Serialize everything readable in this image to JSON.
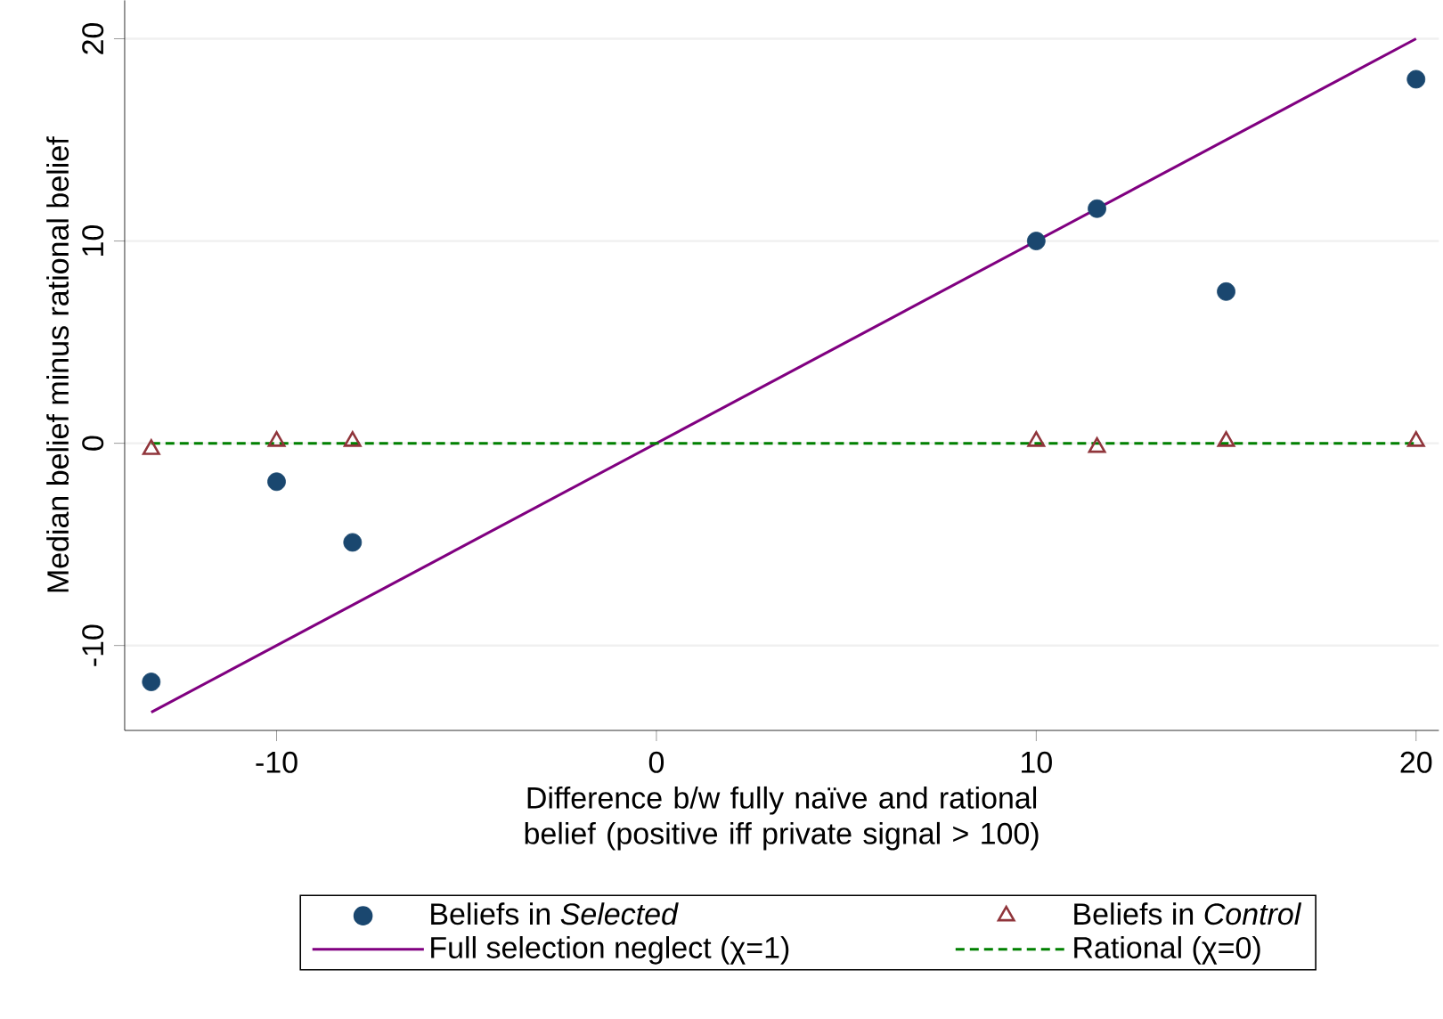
{
  "chart_data": {
    "type": "scatter",
    "xlabel": "Difference b/w fully naïve and rational belief (positive iff private signal > 100)",
    "ylabel": "Median belief minus rational belief",
    "xlim": [
      -14,
      20.6
    ],
    "ylim": [
      -14.2,
      21.9
    ],
    "xticks": [
      -10,
      0,
      10,
      20
    ],
    "yticks": [
      -10,
      0,
      10,
      20
    ],
    "grid": "y",
    "legend": "bottom",
    "series": [
      {
        "name": "Beliefs in *Selected*",
        "color": "#1a476f",
        "marker": "circle",
        "x": [
          -13.3,
          -10,
          -8,
          10,
          11.6,
          15,
          20
        ],
        "values": [
          -11.8,
          -1.9,
          -4.9,
          10,
          11.6,
          7.5,
          18
        ]
      },
      {
        "name": "Beliefs in *Control*",
        "color": "#90353b",
        "marker": "triangle",
        "x": [
          -13.3,
          -10,
          -8,
          10,
          11.6,
          15,
          20
        ],
        "values": [
          -0.3,
          0.1,
          0.1,
          0.1,
          -0.2,
          0.1,
          0.1
        ]
      },
      {
        "name": "Full selection neglect (χ=1)",
        "type": "line",
        "color": "#800080",
        "line_style": "solid",
        "marker": "none",
        "x": [
          -13.3,
          20
        ],
        "values": [
          -13.3,
          20
        ]
      },
      {
        "name": "Rational (χ=0)",
        "type": "line",
        "color": "#008000",
        "line_style": "dashed",
        "marker": "none",
        "x": [
          -13.3,
          20
        ],
        "values": [
          0,
          0
        ]
      }
    ]
  }
}
